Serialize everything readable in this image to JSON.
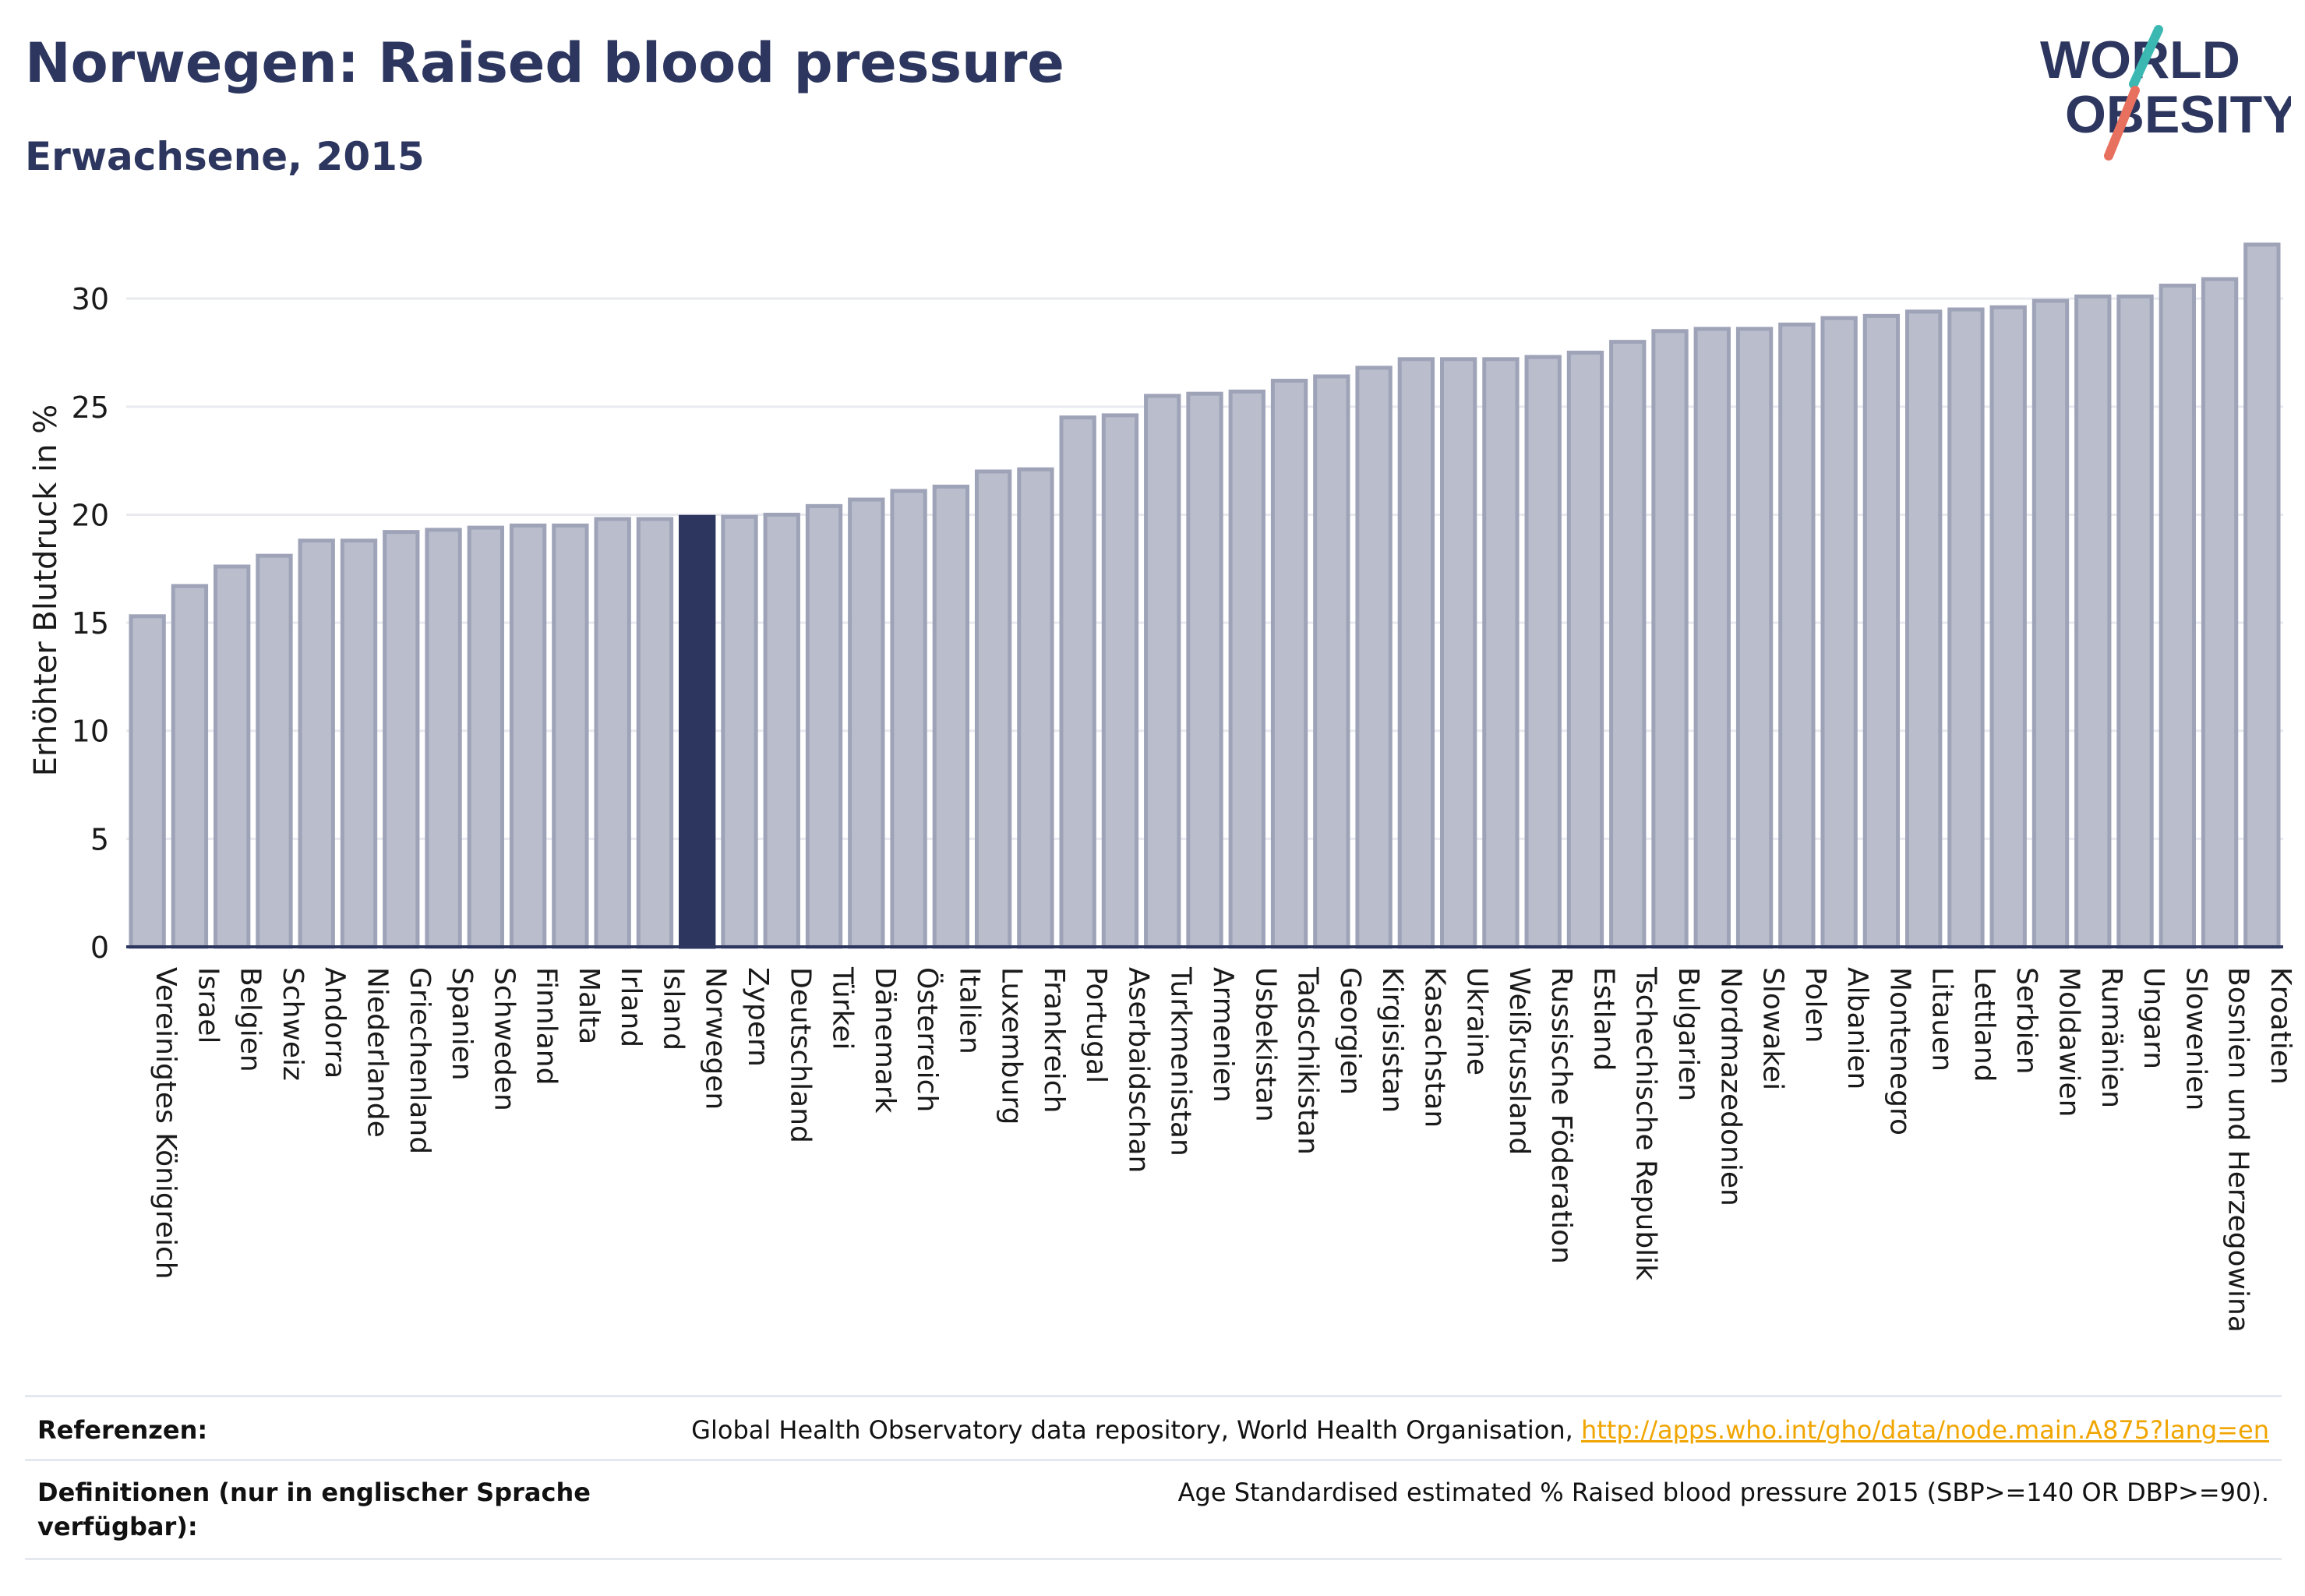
{
  "header": {
    "title": "Norwegen: Raised blood pressure",
    "subtitle": "Erwachsene, 2015"
  },
  "logo": {
    "line1": "WORLD",
    "line2": "OBESITY"
  },
  "colors": {
    "bar": "#b9bdcc",
    "bar_stroke": "#9ea3b8",
    "highlight": "#2c365e",
    "title": "#2c365e",
    "link": "#f0a500",
    "logo_teal": "#3cb8b2",
    "logo_coral": "#e8705e"
  },
  "chart_data": {
    "type": "bar",
    "ylabel": "Erhöhter Blutdruck in %",
    "ylim": [
      0,
      33
    ],
    "yticks": [
      0,
      5,
      10,
      15,
      20,
      25,
      30
    ],
    "grid": true,
    "highlight": "Norwegen",
    "categories": [
      "Vereinigtes Königreich",
      "Israel",
      "Belgien",
      "Schweiz",
      "Andorra",
      "Niederlande",
      "Griechenland",
      "Spanien",
      "Schweden",
      "Finnland",
      "Malta",
      "Irland",
      "Island",
      "Norwegen",
      "Zypern",
      "Deutschland",
      "Türkei",
      "Dänemark",
      "Österreich",
      "Italien",
      "Luxemburg",
      "Frankreich",
      "Portugal",
      "Aserbaidschan",
      "Turkmenistan",
      "Armenien",
      "Usbekistan",
      "Tadschikistan",
      "Georgien",
      "Kirgisistan",
      "Kasachstan",
      "Ukraine",
      "Weißrussland",
      "Russische Föderation",
      "Estland",
      "Tschechische Republik",
      "Bulgarien",
      "Nordmazedonien",
      "Slowakei",
      "Polen",
      "Albanien",
      "Montenegro",
      "Litauen",
      "Lettland",
      "Serbien",
      "Moldawien",
      "Rumänien",
      "Ungarn",
      "Slowenien",
      "Bosnien und Herzegowina",
      "Kroatien"
    ],
    "values": [
      15.3,
      16.7,
      17.6,
      18.1,
      18.8,
      18.8,
      19.2,
      19.3,
      19.4,
      19.5,
      19.5,
      19.8,
      19.8,
      19.9,
      19.9,
      20.0,
      20.4,
      20.7,
      21.1,
      21.3,
      22.0,
      22.1,
      24.5,
      24.6,
      25.5,
      25.6,
      25.7,
      26.2,
      26.4,
      26.8,
      27.2,
      27.2,
      27.2,
      27.3,
      27.5,
      28.0,
      28.5,
      28.6,
      28.6,
      28.8,
      29.1,
      29.2,
      29.4,
      29.5,
      29.6,
      29.9,
      30.1,
      30.1,
      30.6,
      30.9,
      32.5
    ]
  },
  "references": {
    "label": "Referenzen:",
    "text": "Global Health Observatory data repository, World Health Organisation,",
    "link": "http://apps.who.int/gho/data/node.main.A875?lang=en"
  },
  "definitions": {
    "label": "Definitionen (nur in englischer Sprache verfügbar):",
    "text": "Age Standardised estimated % Raised blood pressure 2015 (SBP>=140 OR DBP>=90)."
  }
}
